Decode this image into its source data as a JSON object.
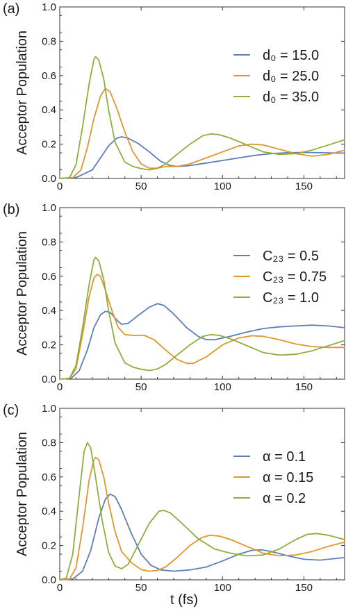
{
  "colors": {
    "series1": "#5B7FB9",
    "series2": "#E1962C",
    "series3": "#8DAE3C"
  },
  "chart_data": [
    {
      "type": "line",
      "panel_label": "(a)",
      "ylabel": "Acceptor Population",
      "xlabel": "",
      "xlim": [
        0,
        175
      ],
      "ylim": [
        0,
        1.0
      ],
      "xticks": [
        0,
        50,
        100,
        150
      ],
      "yticks": [
        0.0,
        0.2,
        0.4,
        0.6,
        0.8,
        1.0
      ],
      "ytick_labels": [
        "0.0",
        "0.2",
        "0.4",
        "0.6",
        "0.8",
        "1.0"
      ],
      "legend_position": "right",
      "series": [
        {
          "name": "d₀ = 15.0",
          "color": "#5B7FB9",
          "points": [
            [
              0,
              0.0
            ],
            [
              10,
              0.005
            ],
            [
              20,
              0.05
            ],
            [
              25,
              0.12
            ],
            [
              30,
              0.19
            ],
            [
              35,
              0.235
            ],
            [
              38,
              0.243
            ],
            [
              42,
              0.235
            ],
            [
              48,
              0.205
            ],
            [
              55,
              0.155
            ],
            [
              62,
              0.1
            ],
            [
              68,
              0.075
            ],
            [
              72,
              0.07
            ],
            [
              78,
              0.073
            ],
            [
              90,
              0.09
            ],
            [
              100,
              0.105
            ],
            [
              110,
              0.12
            ],
            [
              120,
              0.135
            ],
            [
              130,
              0.145
            ],
            [
              140,
              0.15
            ],
            [
              150,
              0.152
            ],
            [
              160,
              0.15
            ],
            [
              170,
              0.148
            ],
            [
              175,
              0.148
            ]
          ]
        },
        {
          "name": "d₀ = 25.0",
          "color": "#E1962C",
          "points": [
            [
              0,
              0.0
            ],
            [
              8,
              0.005
            ],
            [
              13,
              0.05
            ],
            [
              17,
              0.18
            ],
            [
              21,
              0.35
            ],
            [
              25,
              0.48
            ],
            [
              28,
              0.525
            ],
            [
              31,
              0.505
            ],
            [
              35,
              0.41
            ],
            [
              40,
              0.27
            ],
            [
              45,
              0.155
            ],
            [
              50,
              0.085
            ],
            [
              55,
              0.06
            ],
            [
              60,
              0.06
            ],
            [
              65,
              0.07
            ],
            [
              72,
              0.07
            ],
            [
              80,
              0.085
            ],
            [
              90,
              0.12
            ],
            [
              100,
              0.155
            ],
            [
              110,
              0.19
            ],
            [
              118,
              0.2
            ],
            [
              125,
              0.195
            ],
            [
              135,
              0.17
            ],
            [
              145,
              0.145
            ],
            [
              155,
              0.13
            ],
            [
              165,
              0.14
            ],
            [
              175,
              0.165
            ]
          ]
        },
        {
          "name": "d₀ = 35.0",
          "color": "#8DAE3C",
          "points": [
            [
              0,
              0.0
            ],
            [
              6,
              0.005
            ],
            [
              10,
              0.08
            ],
            [
              14,
              0.3
            ],
            [
              18,
              0.55
            ],
            [
              21,
              0.695
            ],
            [
              22,
              0.71
            ],
            [
              24,
              0.69
            ],
            [
              27,
              0.58
            ],
            [
              30,
              0.4
            ],
            [
              34,
              0.21
            ],
            [
              40,
              0.095
            ],
            [
              45,
              0.07
            ],
            [
              50,
              0.058
            ],
            [
              55,
              0.05
            ],
            [
              60,
              0.06
            ],
            [
              65,
              0.085
            ],
            [
              72,
              0.14
            ],
            [
              80,
              0.2
            ],
            [
              88,
              0.25
            ],
            [
              93,
              0.26
            ],
            [
              98,
              0.255
            ],
            [
              105,
              0.235
            ],
            [
              115,
              0.195
            ],
            [
              125,
              0.155
            ],
            [
              135,
              0.14
            ],
            [
              145,
              0.145
            ],
            [
              155,
              0.165
            ],
            [
              165,
              0.195
            ],
            [
              175,
              0.225
            ]
          ]
        }
      ]
    },
    {
      "type": "line",
      "panel_label": "(b)",
      "ylabel": "Acceptor Population",
      "xlabel": "",
      "xlim": [
        0,
        175
      ],
      "ylim": [
        0,
        1.0
      ],
      "xticks": [
        0,
        50,
        100,
        150
      ],
      "yticks": [
        0.0,
        0.2,
        0.4,
        0.6,
        0.8,
        1.0
      ],
      "ytick_labels": [
        "0.0",
        "0.2",
        "0.4",
        "0.6",
        "0.8",
        "1.0"
      ],
      "legend_position": "right",
      "series": [
        {
          "name": "C₂₃ = 0.5",
          "color": "#5B7FB9",
          "points": [
            [
              0,
              0.0
            ],
            [
              7,
              0.005
            ],
            [
              12,
              0.05
            ],
            [
              17,
              0.17
            ],
            [
              21,
              0.3
            ],
            [
              25,
              0.375
            ],
            [
              28,
              0.395
            ],
            [
              31,
              0.39
            ],
            [
              35,
              0.345
            ],
            [
              38,
              0.32
            ],
            [
              42,
              0.325
            ],
            [
              48,
              0.37
            ],
            [
              55,
              0.42
            ],
            [
              60,
              0.44
            ],
            [
              64,
              0.43
            ],
            [
              70,
              0.38
            ],
            [
              78,
              0.3
            ],
            [
              85,
              0.25
            ],
            [
              90,
              0.23
            ],
            [
              95,
              0.23
            ],
            [
              105,
              0.25
            ],
            [
              115,
              0.275
            ],
            [
              125,
              0.295
            ],
            [
              135,
              0.305
            ],
            [
              145,
              0.31
            ],
            [
              155,
              0.315
            ],
            [
              165,
              0.31
            ],
            [
              175,
              0.3
            ]
          ]
        },
        {
          "name": "C₂₃ = 0.75",
          "color": "#E1962C",
          "points": [
            [
              0,
              0.0
            ],
            [
              6,
              0.005
            ],
            [
              10,
              0.06
            ],
            [
              14,
              0.26
            ],
            [
              18,
              0.48
            ],
            [
              21,
              0.59
            ],
            [
              23,
              0.61
            ],
            [
              25,
              0.6
            ],
            [
              28,
              0.52
            ],
            [
              32,
              0.4
            ],
            [
              36,
              0.3
            ],
            [
              40,
              0.26
            ],
            [
              45,
              0.255
            ],
            [
              52,
              0.255
            ],
            [
              58,
              0.23
            ],
            [
              65,
              0.17
            ],
            [
              72,
              0.115
            ],
            [
              78,
              0.092
            ],
            [
              82,
              0.092
            ],
            [
              90,
              0.13
            ],
            [
              100,
              0.2
            ],
            [
              110,
              0.24
            ],
            [
              118,
              0.253
            ],
            [
              125,
              0.25
            ],
            [
              135,
              0.23
            ],
            [
              145,
              0.205
            ],
            [
              155,
              0.19
            ],
            [
              165,
              0.185
            ],
            [
              175,
              0.185
            ]
          ]
        },
        {
          "name": "C₂₃ = 1.0",
          "color": "#8DAE3C",
          "points": [
            [
              0,
              0.0
            ],
            [
              6,
              0.005
            ],
            [
              10,
              0.08
            ],
            [
              14,
              0.3
            ],
            [
              18,
              0.55
            ],
            [
              21,
              0.695
            ],
            [
              22,
              0.71
            ],
            [
              24,
              0.69
            ],
            [
              27,
              0.58
            ],
            [
              30,
              0.4
            ],
            [
              34,
              0.21
            ],
            [
              40,
              0.095
            ],
            [
              45,
              0.07
            ],
            [
              50,
              0.058
            ],
            [
              55,
              0.05
            ],
            [
              60,
              0.06
            ],
            [
              65,
              0.085
            ],
            [
              72,
              0.14
            ],
            [
              80,
              0.2
            ],
            [
              88,
              0.25
            ],
            [
              93,
              0.26
            ],
            [
              98,
              0.255
            ],
            [
              105,
              0.235
            ],
            [
              115,
              0.195
            ],
            [
              125,
              0.155
            ],
            [
              135,
              0.14
            ],
            [
              145,
              0.145
            ],
            [
              155,
              0.165
            ],
            [
              165,
              0.195
            ],
            [
              175,
              0.225
            ]
          ]
        }
      ]
    },
    {
      "type": "line",
      "panel_label": "(c)",
      "ylabel": "Acceptor Population",
      "xlabel": "t (fs)",
      "xlim": [
        0,
        175
      ],
      "ylim": [
        0,
        1.0
      ],
      "xticks": [
        0,
        50,
        100,
        150
      ],
      "yticks": [
        0.0,
        0.2,
        0.4,
        0.6,
        0.8,
        1.0
      ],
      "ytick_labels": [
        "0.0",
        "0.2",
        "0.4",
        "0.6",
        "0.8",
        "1.0"
      ],
      "legend_position": "right",
      "series": [
        {
          "name": "α = 0.1",
          "color": "#5B7FB9",
          "points": [
            [
              0,
              0.0
            ],
            [
              8,
              0.005
            ],
            [
              14,
              0.05
            ],
            [
              19,
              0.17
            ],
            [
              24,
              0.36
            ],
            [
              28,
              0.47
            ],
            [
              31,
              0.5
            ],
            [
              34,
              0.485
            ],
            [
              38,
              0.41
            ],
            [
              44,
              0.27
            ],
            [
              50,
              0.15
            ],
            [
              56,
              0.085
            ],
            [
              62,
              0.058
            ],
            [
              70,
              0.05
            ],
            [
              80,
              0.058
            ],
            [
              90,
              0.075
            ],
            [
              100,
              0.11
            ],
            [
              110,
              0.15
            ],
            [
              118,
              0.172
            ],
            [
              124,
              0.175
            ],
            [
              130,
              0.165
            ],
            [
              140,
              0.14
            ],
            [
              150,
              0.12
            ],
            [
              160,
              0.115
            ],
            [
              170,
              0.125
            ],
            [
              175,
              0.13
            ]
          ]
        },
        {
          "name": "α = 0.15",
          "color": "#E1962C",
          "points": [
            [
              0,
              0.0
            ],
            [
              6,
              0.005
            ],
            [
              10,
              0.07
            ],
            [
              14,
              0.3
            ],
            [
              18,
              0.58
            ],
            [
              21,
              0.7
            ],
            [
              22,
              0.715
            ],
            [
              24,
              0.7
            ],
            [
              27,
              0.6
            ],
            [
              30,
              0.45
            ],
            [
              34,
              0.28
            ],
            [
              38,
              0.165
            ],
            [
              44,
              0.1
            ],
            [
              50,
              0.06
            ],
            [
              55,
              0.05
            ],
            [
              60,
              0.055
            ],
            [
              65,
              0.075
            ],
            [
              72,
              0.13
            ],
            [
              80,
              0.2
            ],
            [
              87,
              0.245
            ],
            [
              92,
              0.26
            ],
            [
              98,
              0.255
            ],
            [
              105,
              0.235
            ],
            [
              115,
              0.195
            ],
            [
              125,
              0.155
            ],
            [
              135,
              0.14
            ],
            [
              145,
              0.145
            ],
            [
              155,
              0.165
            ],
            [
              165,
              0.195
            ],
            [
              175,
              0.22
            ]
          ]
        },
        {
          "name": "α = 0.2",
          "color": "#8DAE3C",
          "points": [
            [
              0,
              0.0
            ],
            [
              4,
              0.01
            ],
            [
              8,
              0.15
            ],
            [
              12,
              0.5
            ],
            [
              15,
              0.75
            ],
            [
              17,
              0.8
            ],
            [
              19,
              0.77
            ],
            [
              22,
              0.6
            ],
            [
              26,
              0.35
            ],
            [
              30,
              0.16
            ],
            [
              34,
              0.08
            ],
            [
              38,
              0.065
            ],
            [
              42,
              0.09
            ],
            [
              48,
              0.2
            ],
            [
              55,
              0.33
            ],
            [
              61,
              0.4
            ],
            [
              64,
              0.405
            ],
            [
              68,
              0.39
            ],
            [
              75,
              0.33
            ],
            [
              85,
              0.24
            ],
            [
              95,
              0.18
            ],
            [
              105,
              0.155
            ],
            [
              115,
              0.14
            ],
            [
              125,
              0.145
            ],
            [
              135,
              0.18
            ],
            [
              145,
              0.235
            ],
            [
              152,
              0.265
            ],
            [
              158,
              0.27
            ],
            [
              165,
              0.26
            ],
            [
              175,
              0.235
            ]
          ]
        }
      ]
    }
  ]
}
